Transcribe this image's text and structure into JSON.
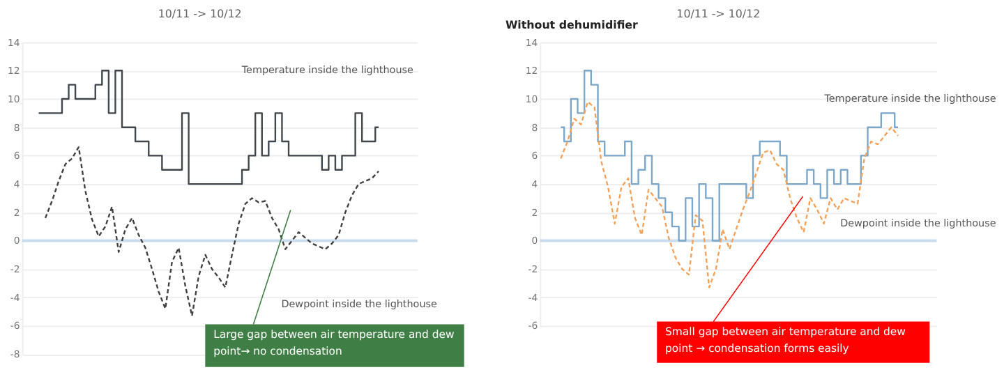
{
  "chart_data": [
    {
      "type": "line",
      "subtitle": "10/11 -> 10/12",
      "categories": [
        null,
        null,
        null,
        null,
        null,
        null,
        null,
        null,
        null,
        null,
        null,
        null,
        null,
        null,
        null,
        null,
        null,
        null,
        null,
        null,
        null,
        null,
        null,
        null,
        null,
        null,
        null,
        null,
        null,
        null,
        null,
        null,
        null,
        null,
        null,
        null,
        null,
        null,
        null,
        null,
        null,
        null,
        null,
        null,
        null,
        null,
        null,
        null,
        null,
        null,
        null,
        null
      ],
      "series": [
        {
          "type": "step",
          "color": "#3f474d",
          "line_style": "solid",
          "values": [
            9,
            9,
            9,
            9,
            10,
            11,
            10,
            10,
            10,
            11,
            12,
            9,
            12,
            8,
            8,
            7,
            7,
            6,
            6,
            5,
            5,
            5,
            9,
            4,
            4,
            4,
            4,
            4,
            4,
            4,
            4,
            5,
            6,
            9,
            6,
            7,
            9,
            7,
            6,
            6,
            6,
            6,
            6,
            5,
            6,
            5,
            6,
            6,
            9,
            7,
            7,
            8
          ]
        },
        {
          "type": "line",
          "color": "#404040",
          "line_style": "dashed",
          "values": [
            null,
            1.6,
            2.8,
            4.2,
            5.4,
            5.8,
            6.6,
            3.5,
            1.5,
            0.3,
            1,
            2.4,
            -0.8,
            0.8,
            1.6,
            0.4,
            -0.5,
            -2,
            -3.6,
            -4.8,
            -1.5,
            -0.5,
            -3.2,
            -5.3,
            -2.5,
            -1,
            -2,
            -2.6,
            -3.3,
            -1,
            1.2,
            2.6,
            3,
            2.7,
            2.8,
            1.6,
            0.8,
            -0.6,
            0,
            0.6,
            0.2,
            -0.2,
            -0.4,
            -0.6,
            -0.2,
            0.4,
            2,
            3.2,
            4,
            4.2,
            4.4,
            4.9
          ]
        }
      ],
      "ylim": [
        -8,
        14
      ],
      "yticks": [
        -8,
        -6,
        -4,
        -2,
        0,
        2,
        4,
        6,
        8,
        10,
        12,
        14
      ],
      "grid": "y",
      "tick_labels": "y",
      "ref_lines": [
        {
          "axis": "y",
          "value": 0,
          "color": "#c9dcee"
        }
      ],
      "annotations": [
        "Temperature inside the lighthouse",
        "Dewpoint inside the lighthouse",
        "Large gap between air temperature and dew point→ no condensation"
      ]
    },
    {
      "type": "line",
      "title": "Without dehumidifier",
      "subtitle": "10/11 -> 10/12",
      "categories": [
        null,
        null,
        null,
        null,
        null,
        null,
        null,
        null,
        null,
        null,
        null,
        null,
        null,
        null,
        null,
        null,
        null,
        null,
        null,
        null,
        null,
        null,
        null,
        null,
        null,
        null,
        null,
        null,
        null,
        null,
        null,
        null,
        null,
        null,
        null,
        null,
        null,
        null,
        null,
        null,
        null,
        null,
        null,
        null,
        null,
        null,
        null,
        null,
        null,
        null,
        null
      ],
      "series": [
        {
          "type": "step",
          "color": "#7ba7cb",
          "line_style": "solid",
          "values": [
            8,
            7,
            10,
            9,
            12,
            11,
            7,
            6,
            6,
            6,
            7,
            4,
            5,
            6,
            4,
            3,
            2,
            1,
            0,
            3,
            1,
            4,
            3,
            0,
            4,
            4,
            4,
            4,
            3,
            6,
            7,
            7,
            7,
            6,
            4,
            4,
            4,
            5,
            4,
            3,
            5,
            4,
            5,
            4,
            4,
            6,
            8,
            8,
            9,
            9,
            8
          ]
        },
        {
          "type": "line",
          "color": "#f4a25a",
          "line_style": "dashed",
          "values": [
            5.8,
            7,
            8.6,
            8.2,
            9.8,
            9.4,
            5.6,
            3.8,
            1.2,
            3.8,
            4.4,
            1.6,
            0.4,
            3.6,
            3,
            2.4,
            0.2,
            -1.2,
            -2,
            -2.4,
            1.8,
            1.4,
            -3.3,
            -2,
            0.8,
            -0.6,
            0.8,
            2.2,
            3.4,
            4.8,
            6.2,
            6.4,
            5.4,
            5,
            3,
            1.6,
            0.6,
            3,
            2.2,
            1.2,
            3,
            2.2,
            3,
            2.8,
            2.6,
            5.8,
            7,
            6.8,
            7.4,
            8,
            7.4
          ]
        }
      ],
      "ylim": [
        -6,
        14
      ],
      "yticks": [
        -6,
        -4,
        -2,
        0,
        2,
        4,
        6,
        8,
        10,
        12,
        14
      ],
      "grid": "y",
      "tick_labels": "y",
      "ref_lines": [
        {
          "axis": "y",
          "value": 0,
          "color": "#c9dcee"
        }
      ],
      "annotations": [
        "Temperature inside the lighthouse",
        "Dewpoint inside the lighthouse",
        "Small gap between air temperature and dew point → condensation forms easily"
      ]
    }
  ]
}
